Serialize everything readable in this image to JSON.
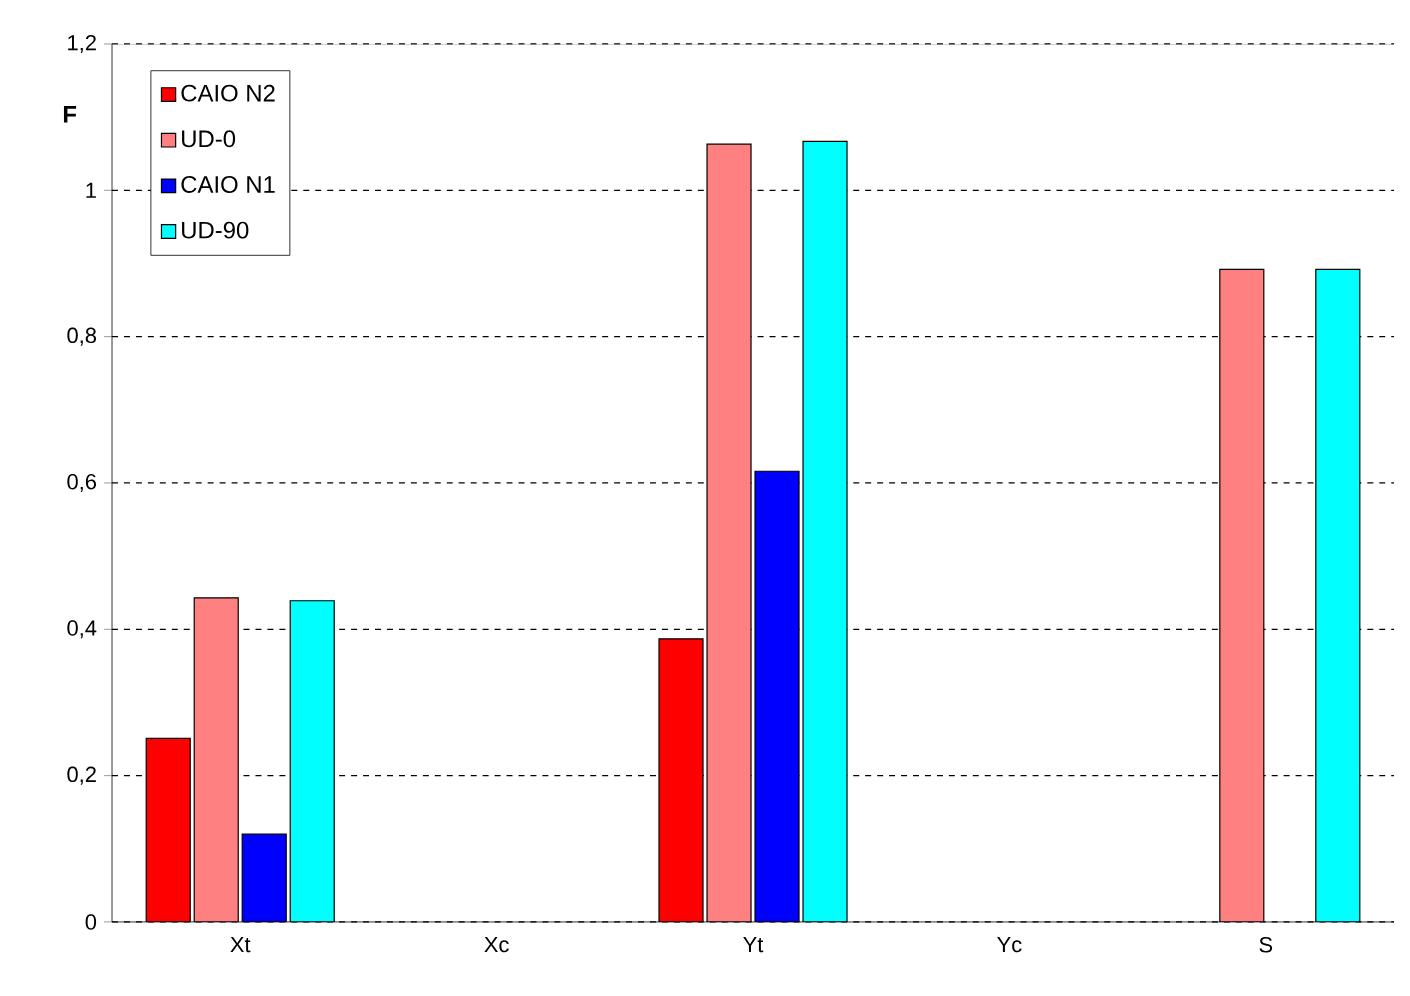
{
  "chart_data": {
    "type": "bar",
    "ylabel": "F",
    "categories": [
      "Xt",
      "Xc",
      "Yt",
      "Yc",
      "S"
    ],
    "series": [
      {
        "name": "CAIO N2",
        "color": "#ff0000",
        "values": [
          0.251,
          null,
          0.387,
          null,
          null
        ]
      },
      {
        "name": "UD-0",
        "color": "#ff8080",
        "values": [
          0.443,
          null,
          1.063,
          null,
          0.892
        ]
      },
      {
        "name": "CAIO N1",
        "color": "#0000ff",
        "values": [
          0.12,
          null,
          0.616,
          null,
          null
        ]
      },
      {
        "name": "UD-90",
        "color": "#00ffff",
        "values": [
          0.439,
          null,
          1.067,
          null,
          0.892
        ]
      }
    ],
    "ylim": [
      0,
      1.2
    ],
    "yticks": [
      0,
      {
        "value": 0.2,
        "label": "0,2"
      },
      {
        "value": 0.4,
        "label": "0,4"
      },
      {
        "value": 0.6,
        "label": "0,6"
      },
      {
        "value": 0.8,
        "label": "0,8"
      },
      1,
      {
        "value": 1.2,
        "label": "1,2"
      }
    ],
    "grid": "y",
    "legend": "top left"
  }
}
